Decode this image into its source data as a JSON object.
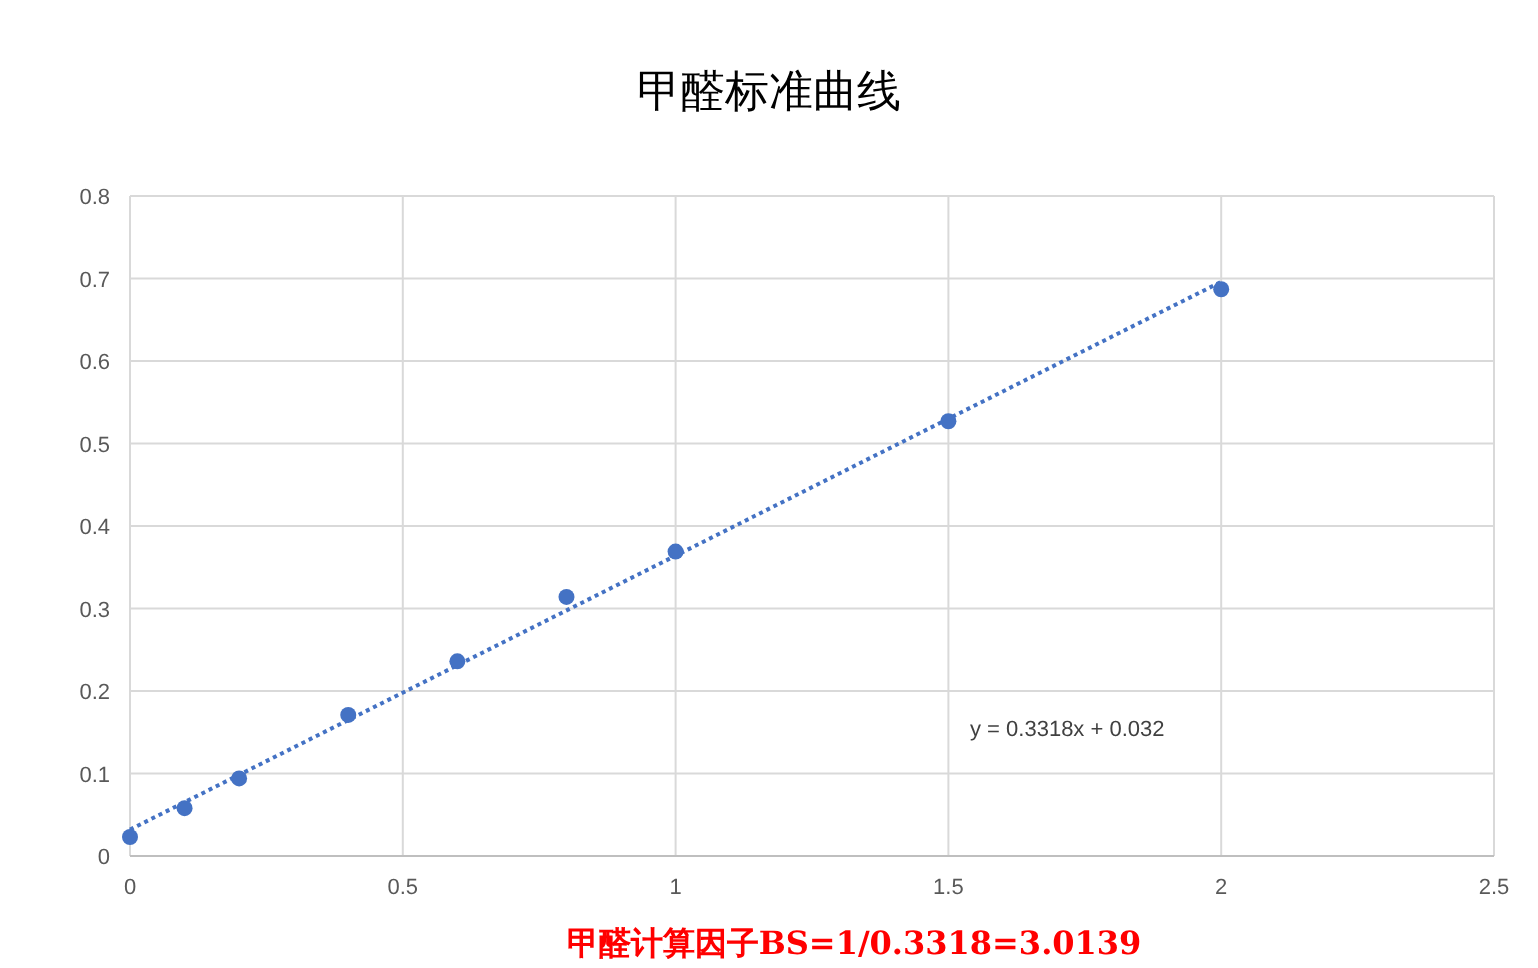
{
  "chart_data": {
    "type": "scatter",
    "title": "甲醛标准曲线",
    "series": [
      {
        "type": "scatter",
        "color": "#4472c4",
        "marker": "circle",
        "x": [
          0,
          0.1,
          0.2,
          0.4,
          0.6,
          0.8,
          1,
          1.5,
          2
        ],
        "values": [
          0.023,
          0.058,
          0.094,
          0.171,
          0.236,
          0.314,
          0.369,
          0.527,
          0.687
        ]
      },
      {
        "type": "line",
        "color": "#4472c4",
        "line_style": "dotted",
        "marker": "none",
        "x": [
          0,
          2
        ],
        "values": [
          0.032,
          0.696
        ]
      }
    ],
    "xlim": [
      0,
      2.5
    ],
    "ylim": [
      0,
      0.8
    ],
    "xticks": [
      0,
      0.5,
      1,
      1.5,
      2,
      2.5
    ],
    "yticks": [
      0,
      0.1,
      0.2,
      0.3,
      0.4,
      0.5,
      0.6,
      0.7,
      0.8
    ],
    "grid": true,
    "annotations": [
      "y = 0.3318x + 0.032",
      "甲醛计算因子BS=1/0.3318=3.0139"
    ]
  }
}
